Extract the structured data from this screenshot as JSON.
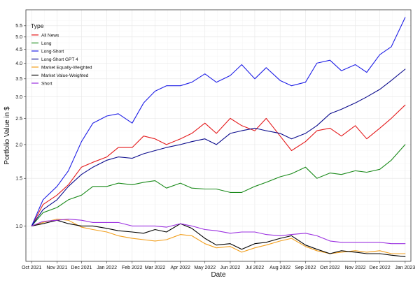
{
  "chart_data": {
    "type": "line",
    "xlabel": "Date",
    "ylabel": "Portfolio Value in $",
    "y_scale": "log",
    "ylim": [
      0.74,
      6.3
    ],
    "xlim": [
      "2021-09-24",
      "2023-01-08"
    ],
    "grid": true,
    "legend": {
      "title": "Type",
      "position": "top-left"
    },
    "x_ticks": [
      {
        "date": "2021-10-01",
        "label": "Oct 2021"
      },
      {
        "date": "2021-11-01",
        "label": "Nov 2021"
      },
      {
        "date": "2021-12-01",
        "label": "Dec 2021"
      },
      {
        "date": "2022-01-01",
        "label": "Jan 2022"
      },
      {
        "date": "2022-02-01",
        "label": "Feb 2022"
      },
      {
        "date": "2022-03-01",
        "label": "Mar 2022"
      },
      {
        "date": "2022-04-01",
        "label": "Apr 2022"
      },
      {
        "date": "2022-05-01",
        "label": "May 2022"
      },
      {
        "date": "2022-06-01",
        "label": "Jun 2022"
      },
      {
        "date": "2022-07-01",
        "label": "Jul 2022"
      },
      {
        "date": "2022-08-01",
        "label": "Aug 2022"
      },
      {
        "date": "2022-09-01",
        "label": "Sep 2022"
      },
      {
        "date": "2022-10-01",
        "label": "Oct 2022"
      },
      {
        "date": "2022-11-01",
        "label": "Nov 2022"
      },
      {
        "date": "2022-12-01",
        "label": "Dec 2022"
      },
      {
        "date": "2023-01-01",
        "label": "Jan 2023"
      }
    ],
    "y_ticks": [
      {
        "value": 1.0,
        "label": "1.0"
      },
      {
        "value": 1.5,
        "label": "1.5"
      },
      {
        "value": 2.0,
        "label": "2.0"
      },
      {
        "value": 2.5,
        "label": "2.5"
      },
      {
        "value": 3.0,
        "label": "3.0"
      },
      {
        "value": 3.5,
        "label": "3.5"
      },
      {
        "value": 4.0,
        "label": "4.0"
      },
      {
        "value": 4.5,
        "label": "4.5"
      },
      {
        "value": 5.0,
        "label": "5.0"
      },
      {
        "value": 5.5,
        "label": "5.5"
      }
    ],
    "series": [
      {
        "name": "All News",
        "color": "#e41a1c",
        "points": [
          [
            "2021-10-01",
            1.0
          ],
          [
            "2021-10-15",
            1.2
          ],
          [
            "2021-11-01",
            1.3
          ],
          [
            "2021-11-15",
            1.42
          ],
          [
            "2021-12-01",
            1.65
          ],
          [
            "2021-12-15",
            1.72
          ],
          [
            "2022-01-01",
            1.8
          ],
          [
            "2022-01-15",
            1.95
          ],
          [
            "2022-02-01",
            1.95
          ],
          [
            "2022-02-15",
            2.15
          ],
          [
            "2022-03-01",
            2.1
          ],
          [
            "2022-03-15",
            2.0
          ],
          [
            "2022-04-01",
            2.1
          ],
          [
            "2022-04-15",
            2.2
          ],
          [
            "2022-05-01",
            2.4
          ],
          [
            "2022-05-15",
            2.2
          ],
          [
            "2022-06-01",
            2.5
          ],
          [
            "2022-06-15",
            2.35
          ],
          [
            "2022-07-01",
            2.25
          ],
          [
            "2022-07-15",
            2.5
          ],
          [
            "2022-08-01",
            2.15
          ],
          [
            "2022-08-15",
            1.9
          ],
          [
            "2022-09-01",
            2.05
          ],
          [
            "2022-09-15",
            2.25
          ],
          [
            "2022-10-01",
            2.3
          ],
          [
            "2022-10-15",
            2.15
          ],
          [
            "2022-11-01",
            2.35
          ],
          [
            "2022-11-15",
            2.1
          ],
          [
            "2022-12-01",
            2.3
          ],
          [
            "2022-12-15",
            2.5
          ],
          [
            "2023-01-01",
            2.8
          ]
        ]
      },
      {
        "name": "Long",
        "color": "#1a8a1a",
        "points": [
          [
            "2021-10-01",
            1.0
          ],
          [
            "2021-10-15",
            1.12
          ],
          [
            "2021-11-01",
            1.17
          ],
          [
            "2021-11-15",
            1.25
          ],
          [
            "2021-12-01",
            1.3
          ],
          [
            "2021-12-15",
            1.4
          ],
          [
            "2022-01-01",
            1.4
          ],
          [
            "2022-01-15",
            1.44
          ],
          [
            "2022-02-01",
            1.42
          ],
          [
            "2022-02-15",
            1.45
          ],
          [
            "2022-03-01",
            1.47
          ],
          [
            "2022-03-15",
            1.38
          ],
          [
            "2022-04-01",
            1.44
          ],
          [
            "2022-04-15",
            1.38
          ],
          [
            "2022-05-01",
            1.37
          ],
          [
            "2022-05-15",
            1.37
          ],
          [
            "2022-06-01",
            1.33
          ],
          [
            "2022-06-15",
            1.33
          ],
          [
            "2022-07-01",
            1.4
          ],
          [
            "2022-07-15",
            1.45
          ],
          [
            "2022-08-01",
            1.52
          ],
          [
            "2022-08-15",
            1.56
          ],
          [
            "2022-09-01",
            1.65
          ],
          [
            "2022-09-15",
            1.5
          ],
          [
            "2022-10-01",
            1.57
          ],
          [
            "2022-10-15",
            1.55
          ],
          [
            "2022-11-01",
            1.6
          ],
          [
            "2022-11-15",
            1.58
          ],
          [
            "2022-12-01",
            1.62
          ],
          [
            "2022-12-15",
            1.75
          ],
          [
            "2023-01-01",
            2.0
          ]
        ]
      },
      {
        "name": "Long-Short",
        "color": "#1f1fe6",
        "points": [
          [
            "2021-10-01",
            1.0
          ],
          [
            "2021-10-15",
            1.25
          ],
          [
            "2021-11-01",
            1.4
          ],
          [
            "2021-11-15",
            1.6
          ],
          [
            "2021-12-01",
            2.05
          ],
          [
            "2021-12-15",
            2.4
          ],
          [
            "2022-01-01",
            2.55
          ],
          [
            "2022-01-15",
            2.6
          ],
          [
            "2022-02-01",
            2.4
          ],
          [
            "2022-02-15",
            2.85
          ],
          [
            "2022-03-01",
            3.15
          ],
          [
            "2022-03-15",
            3.3
          ],
          [
            "2022-04-01",
            3.3
          ],
          [
            "2022-04-15",
            3.4
          ],
          [
            "2022-05-01",
            3.65
          ],
          [
            "2022-05-15",
            3.4
          ],
          [
            "2022-06-01",
            3.6
          ],
          [
            "2022-06-15",
            3.95
          ],
          [
            "2022-07-01",
            3.5
          ],
          [
            "2022-07-15",
            3.85
          ],
          [
            "2022-08-01",
            3.45
          ],
          [
            "2022-08-15",
            3.3
          ],
          [
            "2022-09-01",
            3.4
          ],
          [
            "2022-09-15",
            4.0
          ],
          [
            "2022-10-01",
            4.1
          ],
          [
            "2022-10-15",
            3.75
          ],
          [
            "2022-11-01",
            3.95
          ],
          [
            "2022-11-15",
            3.7
          ],
          [
            "2022-12-01",
            4.3
          ],
          [
            "2022-12-15",
            4.6
          ],
          [
            "2023-01-01",
            5.9
          ]
        ]
      },
      {
        "name": "Long-Short GPT 4",
        "color": "#0a0a8c",
        "points": [
          [
            "2021-10-01",
            1.0
          ],
          [
            "2021-10-15",
            1.15
          ],
          [
            "2021-11-01",
            1.25
          ],
          [
            "2021-11-15",
            1.4
          ],
          [
            "2021-12-01",
            1.55
          ],
          [
            "2021-12-15",
            1.65
          ],
          [
            "2022-01-01",
            1.75
          ],
          [
            "2022-01-15",
            1.8
          ],
          [
            "2022-02-01",
            1.78
          ],
          [
            "2022-02-15",
            1.85
          ],
          [
            "2022-03-01",
            1.9
          ],
          [
            "2022-03-15",
            1.95
          ],
          [
            "2022-04-01",
            2.0
          ],
          [
            "2022-04-15",
            2.05
          ],
          [
            "2022-05-01",
            2.1
          ],
          [
            "2022-05-15",
            2.0
          ],
          [
            "2022-06-01",
            2.2
          ],
          [
            "2022-06-15",
            2.25
          ],
          [
            "2022-07-01",
            2.3
          ],
          [
            "2022-07-15",
            2.25
          ],
          [
            "2022-08-01",
            2.2
          ],
          [
            "2022-08-15",
            2.1
          ],
          [
            "2022-09-01",
            2.2
          ],
          [
            "2022-09-15",
            2.35
          ],
          [
            "2022-10-01",
            2.6
          ],
          [
            "2022-10-15",
            2.7
          ],
          [
            "2022-11-01",
            2.85
          ],
          [
            "2022-11-15",
            3.0
          ],
          [
            "2022-12-01",
            3.2
          ],
          [
            "2022-12-15",
            3.45
          ],
          [
            "2023-01-01",
            3.8
          ]
        ]
      },
      {
        "name": "Market Equally-Weighted",
        "color": "#f29e1b",
        "points": [
          [
            "2021-10-01",
            1.0
          ],
          [
            "2021-10-15",
            1.03
          ],
          [
            "2021-11-01",
            1.06
          ],
          [
            "2021-11-15",
            1.05
          ],
          [
            "2021-12-01",
            0.99
          ],
          [
            "2021-12-15",
            0.97
          ],
          [
            "2022-01-01",
            0.95
          ],
          [
            "2022-01-15",
            0.92
          ],
          [
            "2022-02-01",
            0.9
          ],
          [
            "2022-02-15",
            0.89
          ],
          [
            "2022-03-01",
            0.88
          ],
          [
            "2022-03-15",
            0.89
          ],
          [
            "2022-04-01",
            0.93
          ],
          [
            "2022-04-15",
            0.92
          ],
          [
            "2022-05-01",
            0.86
          ],
          [
            "2022-05-15",
            0.83
          ],
          [
            "2022-06-01",
            0.84
          ],
          [
            "2022-06-15",
            0.8
          ],
          [
            "2022-07-01",
            0.83
          ],
          [
            "2022-07-15",
            0.85
          ],
          [
            "2022-08-01",
            0.88
          ],
          [
            "2022-08-15",
            0.9
          ],
          [
            "2022-09-01",
            0.84
          ],
          [
            "2022-09-15",
            0.81
          ],
          [
            "2022-10-01",
            0.79
          ],
          [
            "2022-10-15",
            0.8
          ],
          [
            "2022-11-01",
            0.81
          ],
          [
            "2022-11-15",
            0.8
          ],
          [
            "2022-12-01",
            0.81
          ],
          [
            "2022-12-15",
            0.79
          ],
          [
            "2023-01-01",
            0.79
          ]
        ]
      },
      {
        "name": "Market Value-Weighted",
        "color": "#000000",
        "points": [
          [
            "2021-10-01",
            1.0
          ],
          [
            "2021-10-15",
            1.02
          ],
          [
            "2021-11-01",
            1.05
          ],
          [
            "2021-11-15",
            1.02
          ],
          [
            "2021-12-01",
            1.0
          ],
          [
            "2021-12-15",
            1.0
          ],
          [
            "2022-01-01",
            0.98
          ],
          [
            "2022-01-15",
            0.96
          ],
          [
            "2022-02-01",
            0.95
          ],
          [
            "2022-02-15",
            0.94
          ],
          [
            "2022-03-01",
            0.97
          ],
          [
            "2022-03-15",
            0.95
          ],
          [
            "2022-04-01",
            1.02
          ],
          [
            "2022-04-15",
            0.98
          ],
          [
            "2022-05-01",
            0.9
          ],
          [
            "2022-05-15",
            0.85
          ],
          [
            "2022-06-01",
            0.86
          ],
          [
            "2022-06-15",
            0.82
          ],
          [
            "2022-07-01",
            0.86
          ],
          [
            "2022-07-15",
            0.87
          ],
          [
            "2022-08-01",
            0.9
          ],
          [
            "2022-08-15",
            0.92
          ],
          [
            "2022-09-01",
            0.85
          ],
          [
            "2022-09-15",
            0.82
          ],
          [
            "2022-10-01",
            0.79
          ],
          [
            "2022-10-15",
            0.81
          ],
          [
            "2022-11-01",
            0.8
          ],
          [
            "2022-11-15",
            0.79
          ],
          [
            "2022-12-01",
            0.79
          ],
          [
            "2022-12-15",
            0.78
          ],
          [
            "2023-01-01",
            0.77
          ]
        ]
      },
      {
        "name": "Short",
        "color": "#9b30e0",
        "points": [
          [
            "2021-10-01",
            1.0
          ],
          [
            "2021-10-15",
            1.04
          ],
          [
            "2021-11-01",
            1.05
          ],
          [
            "2021-11-15",
            1.06
          ],
          [
            "2021-12-01",
            1.05
          ],
          [
            "2021-12-15",
            1.03
          ],
          [
            "2022-01-01",
            1.03
          ],
          [
            "2022-01-15",
            1.03
          ],
          [
            "2022-02-01",
            1.0
          ],
          [
            "2022-02-15",
            1.0
          ],
          [
            "2022-03-01",
            1.0
          ],
          [
            "2022-03-15",
            0.99
          ],
          [
            "2022-04-01",
            1.02
          ],
          [
            "2022-04-15",
            1.0
          ],
          [
            "2022-05-01",
            0.97
          ],
          [
            "2022-05-15",
            0.96
          ],
          [
            "2022-06-01",
            0.94
          ],
          [
            "2022-06-15",
            0.95
          ],
          [
            "2022-07-01",
            0.95
          ],
          [
            "2022-07-15",
            0.93
          ],
          [
            "2022-08-01",
            0.92
          ],
          [
            "2022-08-15",
            0.93
          ],
          [
            "2022-09-01",
            0.94
          ],
          [
            "2022-09-15",
            0.92
          ],
          [
            "2022-10-01",
            0.88
          ],
          [
            "2022-10-15",
            0.87
          ],
          [
            "2022-11-01",
            0.87
          ],
          [
            "2022-11-15",
            0.87
          ],
          [
            "2022-12-01",
            0.87
          ],
          [
            "2022-12-15",
            0.86
          ],
          [
            "2023-01-01",
            0.86
          ]
        ]
      }
    ]
  }
}
